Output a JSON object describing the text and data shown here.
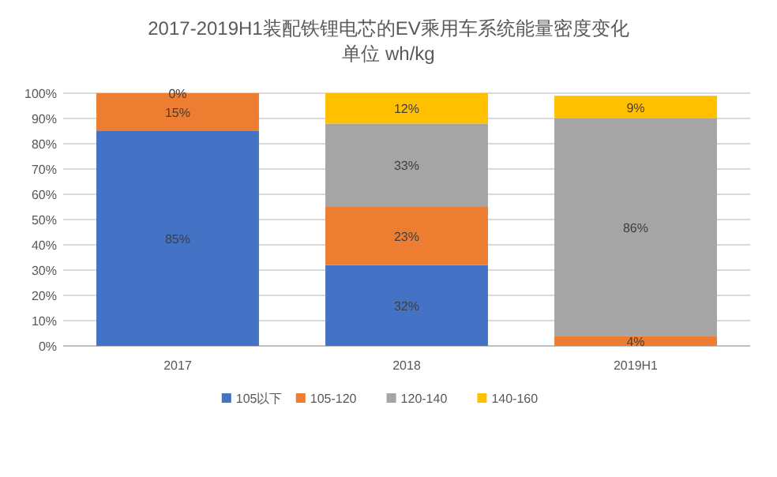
{
  "chart_data": {
    "type": "bar",
    "stacked": true,
    "title": "2017-2019H1装配铁锂电芯的EV乘用车系统能量密度变化",
    "subtitle": "单位 wh/kg",
    "categories": [
      "2017",
      "2018",
      "2019H1"
    ],
    "series": [
      {
        "name": "105以下",
        "color": "#4472c4",
        "values": [
          85,
          32,
          0
        ],
        "value_labels": [
          "85%",
          "32%",
          null
        ]
      },
      {
        "name": "105-120",
        "color": "#ed7d31",
        "values": [
          15,
          23,
          4
        ],
        "value_labels": [
          "15%",
          "23%",
          "4%"
        ]
      },
      {
        "name": "120-140",
        "color": "#a5a5a5",
        "values": [
          0,
          33,
          86
        ],
        "value_labels": [
          "0%",
          "33%",
          "86%"
        ]
      },
      {
        "name": "140-160",
        "color": "#ffc000",
        "values": [
          0,
          12,
          9
        ],
        "value_labels": [
          null,
          "12%",
          "9%"
        ]
      }
    ],
    "ylim": [
      0,
      100
    ],
    "yticks": [
      {
        "value": 0,
        "label": "0%"
      },
      {
        "value": 10,
        "label": "10%"
      },
      {
        "value": 20,
        "label": "20%"
      },
      {
        "value": 30,
        "label": "30%"
      },
      {
        "value": 40,
        "label": "40%"
      },
      {
        "value": 50,
        "label": "50%"
      },
      {
        "value": 60,
        "label": "60%"
      },
      {
        "value": 70,
        "label": "70%"
      },
      {
        "value": 80,
        "label": "80%"
      },
      {
        "value": 90,
        "label": "90%"
      },
      {
        "value": 100,
        "label": "100%"
      }
    ],
    "grid": "y",
    "legend": "bottom"
  }
}
